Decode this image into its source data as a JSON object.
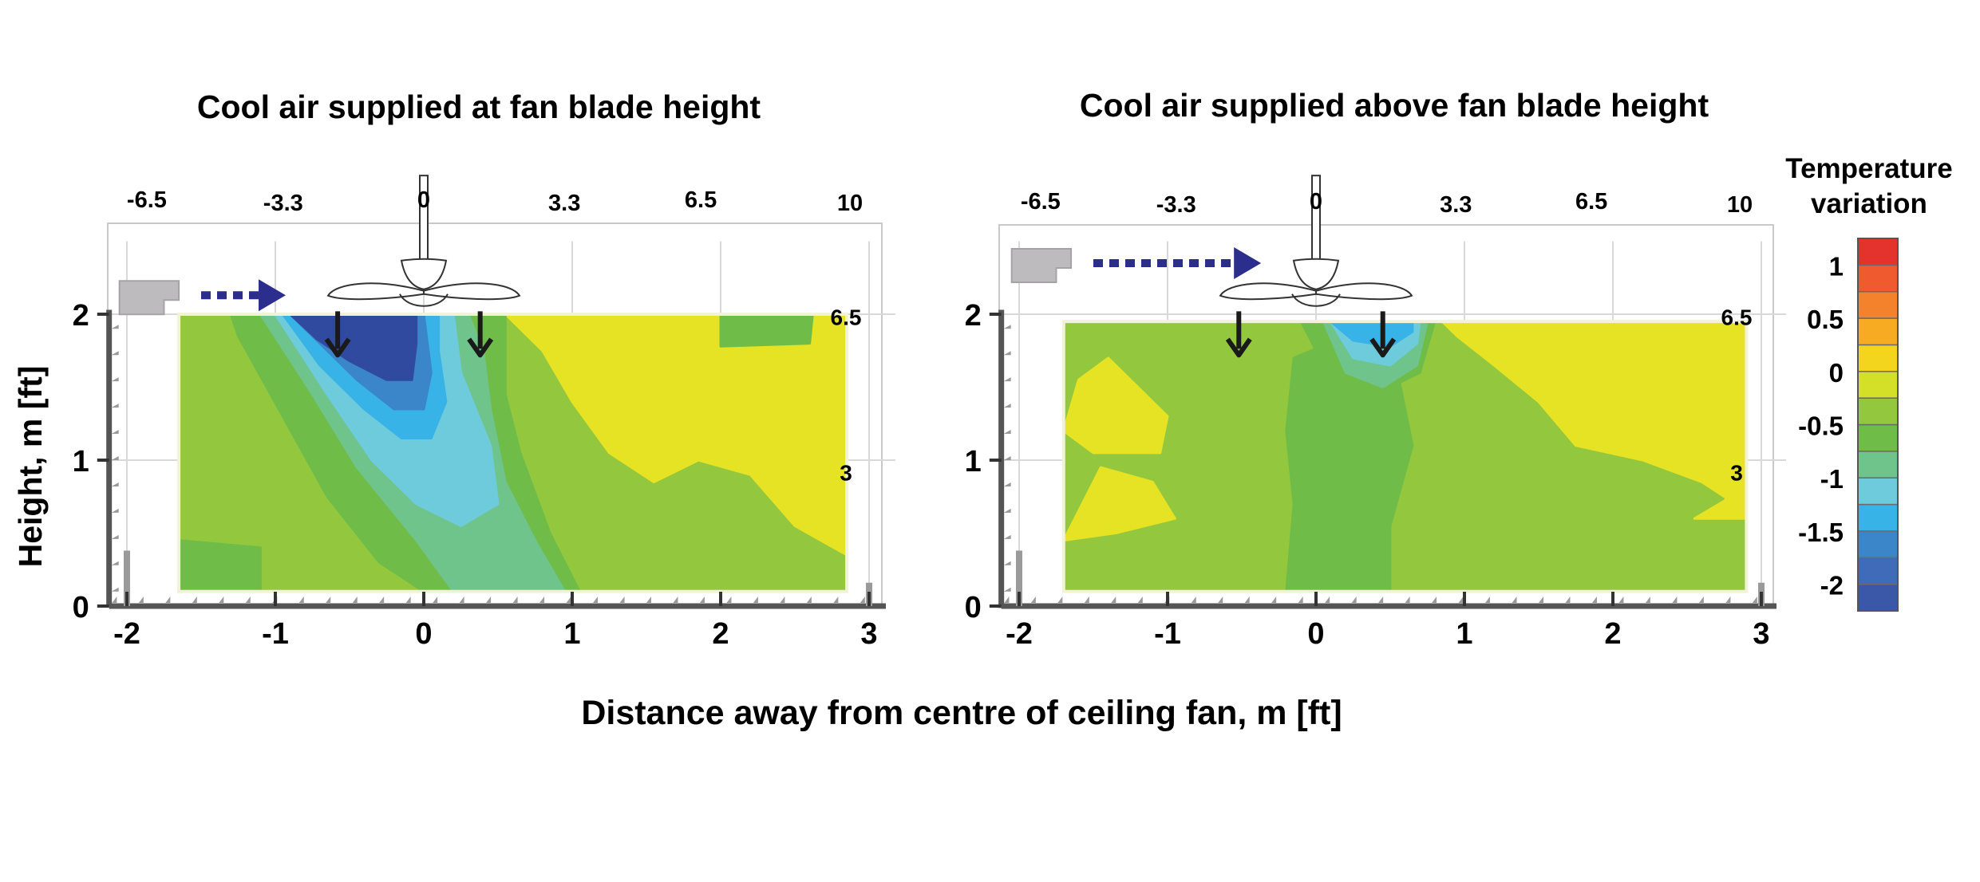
{
  "figure": {
    "xlabel": "Distance away from centre of ceiling fan, m [ft]",
    "ylabel": "Height, m [ft]"
  },
  "colorbar": {
    "title_line1": "Temperature",
    "title_line2": "variation",
    "tick_labels": [
      "1",
      "0.5",
      "0",
      "-0.5",
      "-1",
      "-1.5",
      "-2"
    ],
    "tick_values": [
      1,
      0.5,
      0,
      -0.5,
      -1,
      -1.5,
      -2
    ],
    "levels": [
      {
        "from": -2.0,
        "to": -1.75,
        "color": "#3b58a8"
      },
      {
        "from": -1.75,
        "to": -1.5,
        "color": "#3f6bb8"
      },
      {
        "from": -1.5,
        "to": -1.25,
        "color": "#3b86c8"
      },
      {
        "from": -1.25,
        "to": -1.0,
        "color": "#38b3e8"
      },
      {
        "from": -1.0,
        "to": -0.75,
        "color": "#6ecbdb"
      },
      {
        "from": -0.75,
        "to": -0.5,
        "color": "#6ec48a"
      },
      {
        "from": -0.5,
        "to": -0.25,
        "color": "#6fbc48"
      },
      {
        "from": -0.25,
        "to": 0.0,
        "color": "#93c83e"
      },
      {
        "from": 0.0,
        "to": 0.25,
        "color": "#d4df28"
      },
      {
        "from": 0.25,
        "to": 0.5,
        "color": "#f2d51c"
      },
      {
        "from": 0.5,
        "to": 0.75,
        "color": "#f6ab22"
      },
      {
        "from": 0.75,
        "to": 1.0,
        "color": "#f4812c"
      },
      {
        "from": 1.0,
        "to": 1.25,
        "color": "#ef5a2e"
      },
      {
        "from": 1.25,
        "to": 1.5,
        "color": "#e4322d"
      }
    ]
  },
  "chart_data": [
    {
      "type": "heatmap",
      "title": "Cool air supplied at fan blade height",
      "x_ticks_m": [
        -2,
        -1,
        0,
        1,
        2,
        3
      ],
      "x_ticks_ft": [
        "-6.5",
        "-3.3",
        "0",
        "3.3",
        "6.5",
        "10"
      ],
      "x_ticks_ft_values": [
        -6.5,
        -3.3,
        0,
        3.3,
        6.5,
        10
      ],
      "y_ticks_m": [
        0,
        1,
        2
      ],
      "y_ticks_ft": [
        "6.5",
        "3"
      ],
      "y_ticks_ft_values": [
        6.5,
        3
      ],
      "xlim": [
        -2.2,
        3.05
      ],
      "ylim": [
        0,
        2.5
      ],
      "colors": {
        "dark_blue": "#2f4a9e",
        "blue": "#3b86c8",
        "cyan": "#38b3e8",
        "light_cyan": "#6ecbdb",
        "teal": "#6ec48a",
        "green": "#6fbc48",
        "light_green": "#93c83e",
        "yellow": "#e6e324"
      },
      "supply_arrow_color": "#2b2e8c",
      "downward_arrows_x_m": [
        -0.58,
        0.38
      ],
      "regions": [
        {
          "level": "light_green",
          "points": [
            [
              -1.65,
              0.1
            ],
            [
              2.85,
              0.1
            ],
            [
              2.85,
              2.0
            ],
            [
              -1.65,
              2.0
            ]
          ]
        },
        {
          "level": "yellow",
          "points": [
            [
              0.55,
              2.0
            ],
            [
              2.85,
              2.0
            ],
            [
              2.85,
              0.35
            ],
            [
              2.5,
              0.55
            ],
            [
              2.2,
              0.9
            ],
            [
              1.85,
              1.0
            ],
            [
              1.55,
              0.85
            ],
            [
              1.25,
              1.05
            ],
            [
              1.0,
              1.4
            ],
            [
              0.8,
              1.75
            ]
          ]
        },
        {
          "level": "green",
          "points": [
            [
              2.0,
              1.78
            ],
            [
              2.6,
              1.8
            ],
            [
              2.62,
              2.0
            ],
            [
              2.0,
              2.0
            ]
          ]
        },
        {
          "level": "green",
          "points": [
            [
              -1.65,
              0.1
            ],
            [
              -1.1,
              0.1
            ],
            [
              -1.1,
              0.4
            ],
            [
              -1.65,
              0.45
            ]
          ]
        },
        {
          "level": "green",
          "points": [
            [
              -1.3,
              2.0
            ],
            [
              -1.25,
              1.85
            ],
            [
              -0.95,
              1.3
            ],
            [
              -0.65,
              0.75
            ],
            [
              -0.3,
              0.3
            ],
            [
              0.0,
              0.1
            ],
            [
              1.05,
              0.1
            ],
            [
              0.85,
              0.5
            ],
            [
              0.65,
              1.05
            ],
            [
              0.55,
              1.45
            ],
            [
              0.55,
              2.0
            ]
          ]
        },
        {
          "level": "teal",
          "points": [
            [
              -1.1,
              2.0
            ],
            [
              -0.75,
              1.45
            ],
            [
              -0.45,
              0.95
            ],
            [
              -0.05,
              0.45
            ],
            [
              0.2,
              0.1
            ],
            [
              0.95,
              0.1
            ],
            [
              0.75,
              0.45
            ],
            [
              0.55,
              0.85
            ],
            [
              0.45,
              1.35
            ],
            [
              0.4,
              1.75
            ],
            [
              0.3,
              2.0
            ]
          ]
        },
        {
          "level": "light_cyan",
          "points": [
            [
              -1.0,
              2.0
            ],
            [
              -0.65,
              1.45
            ],
            [
              -0.35,
              1.0
            ],
            [
              -0.05,
              0.7
            ],
            [
              0.25,
              0.55
            ],
            [
              0.5,
              0.7
            ],
            [
              0.45,
              1.1
            ],
            [
              0.25,
              1.6
            ],
            [
              0.2,
              2.0
            ]
          ]
        },
        {
          "level": "cyan",
          "points": [
            [
              -0.95,
              2.0
            ],
            [
              -0.7,
              1.65
            ],
            [
              -0.4,
              1.35
            ],
            [
              -0.15,
              1.15
            ],
            [
              0.05,
              1.15
            ],
            [
              0.15,
              1.4
            ],
            [
              0.1,
              1.75
            ],
            [
              0.1,
              2.0
            ]
          ]
        },
        {
          "level": "blue",
          "points": [
            [
              -0.9,
              2.0
            ],
            [
              -0.7,
              1.8
            ],
            [
              -0.45,
              1.55
            ],
            [
              -0.2,
              1.35
            ],
            [
              0.0,
              1.35
            ],
            [
              0.05,
              1.6
            ],
            [
              0.0,
              2.0
            ]
          ]
        },
        {
          "level": "dark_blue",
          "points": [
            [
              -0.9,
              2.0
            ],
            [
              -0.72,
              1.83
            ],
            [
              -0.5,
              1.68
            ],
            [
              -0.25,
              1.55
            ],
            [
              -0.08,
              1.55
            ],
            [
              -0.05,
              1.8
            ],
            [
              -0.05,
              2.0
            ]
          ]
        }
      ]
    },
    {
      "type": "heatmap",
      "title": "Cool air supplied above fan blade height",
      "x_ticks_m": [
        -2,
        -1,
        0,
        1,
        2,
        3
      ],
      "x_ticks_ft": [
        "-6.5",
        "-3.3",
        "0",
        "3.3",
        "6.5",
        "10"
      ],
      "x_ticks_ft_values": [
        -6.5,
        -3.3,
        0,
        3.3,
        6.5,
        10
      ],
      "y_ticks_m": [
        0,
        1,
        2
      ],
      "y_ticks_ft": [
        "6.5",
        "3"
      ],
      "y_ticks_ft_values": [
        6.5,
        3
      ],
      "xlim": [
        -2.2,
        3.05
      ],
      "ylim": [
        0,
        2.5
      ],
      "colors": {
        "dark_blue": "#2f4a9e",
        "blue": "#3b86c8",
        "cyan": "#38b3e8",
        "light_cyan": "#6ecbdb",
        "teal": "#6ec48a",
        "green": "#6fbc48",
        "light_green": "#93c83e",
        "yellow": "#e6e324"
      },
      "supply_arrow_color": "#2b2e8c",
      "downward_arrows_x_m": [
        -0.52,
        0.45
      ],
      "regions": [
        {
          "level": "light_green",
          "points": [
            [
              -1.7,
              0.1
            ],
            [
              2.9,
              0.1
            ],
            [
              2.9,
              1.95
            ],
            [
              -1.7,
              1.95
            ]
          ]
        },
        {
          "level": "yellow",
          "points": [
            [
              0.85,
              1.95
            ],
            [
              2.9,
              1.95
            ],
            [
              2.9,
              0.65
            ],
            [
              2.6,
              0.85
            ],
            [
              2.2,
              1.0
            ],
            [
              1.75,
              1.1
            ],
            [
              1.5,
              1.4
            ],
            [
              1.2,
              1.65
            ],
            [
              0.95,
              1.85
            ]
          ]
        },
        {
          "level": "yellow",
          "points": [
            [
              -1.7,
              1.2
            ],
            [
              -1.6,
              1.55
            ],
            [
              -1.4,
              1.7
            ],
            [
              -1.2,
              1.5
            ],
            [
              -1.0,
              1.3
            ],
            [
              -1.05,
              1.05
            ],
            [
              -1.5,
              1.05
            ]
          ]
        },
        {
          "level": "yellow",
          "points": [
            [
              -1.7,
              0.45
            ],
            [
              -1.45,
              0.95
            ],
            [
              -1.1,
              0.85
            ],
            [
              -0.95,
              0.6
            ],
            [
              -1.35,
              0.5
            ]
          ]
        },
        {
          "level": "yellow",
          "points": [
            [
              2.55,
              0.6
            ],
            [
              2.75,
              0.72
            ],
            [
              2.9,
              0.9
            ],
            [
              2.9,
              0.6
            ]
          ]
        },
        {
          "level": "green",
          "points": [
            [
              -0.2,
              0.1
            ],
            [
              0.5,
              0.1
            ],
            [
              0.5,
              0.55
            ],
            [
              0.65,
              1.1
            ],
            [
              0.55,
              1.6
            ],
            [
              0.2,
              1.85
            ],
            [
              -0.15,
              1.7
            ],
            [
              -0.2,
              1.2
            ],
            [
              -0.15,
              0.7
            ]
          ]
        },
        {
          "level": "green",
          "points": [
            [
              -0.1,
              1.95
            ],
            [
              0.1,
              1.55
            ],
            [
              0.4,
              1.45
            ],
            [
              0.7,
              1.6
            ],
            [
              0.8,
              1.95
            ]
          ]
        },
        {
          "level": "teal",
          "points": [
            [
              0.05,
              1.95
            ],
            [
              0.2,
              1.6
            ],
            [
              0.45,
              1.5
            ],
            [
              0.68,
              1.65
            ],
            [
              0.75,
              1.95
            ]
          ]
        },
        {
          "level": "light_cyan",
          "points": [
            [
              0.1,
              1.95
            ],
            [
              0.25,
              1.7
            ],
            [
              0.5,
              1.65
            ],
            [
              0.68,
              1.8
            ],
            [
              0.7,
              1.95
            ]
          ]
        },
        {
          "level": "cyan",
          "points": [
            [
              0.1,
              1.95
            ],
            [
              0.25,
              1.82
            ],
            [
              0.5,
              1.78
            ],
            [
              0.65,
              1.88
            ],
            [
              0.65,
              1.95
            ]
          ]
        }
      ]
    }
  ]
}
